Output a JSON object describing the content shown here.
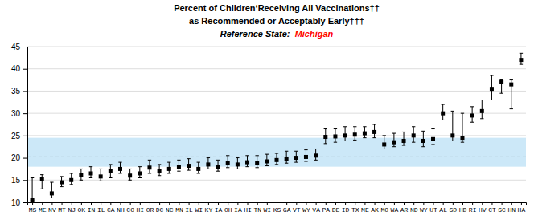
{
  "chart_data": {
    "type": "errorbar",
    "title": "Percent of Children‘Receiving All Vaccinations††",
    "subtitle": "as Recommended or Acceptably Early†††",
    "annotations": [
      {
        "text": "Reference State:  ",
        "color": "black"
      },
      {
        "text": "Michigan",
        "color": "red"
      }
    ],
    "categories": [
      "MS",
      "ME",
      "NV",
      "MT",
      "NJ",
      "OK",
      "IN",
      "IL",
      "CA",
      "NH",
      "CO",
      "HI",
      "OR",
      "DC",
      "NC",
      "MN",
      "IL",
      "WI",
      "KY",
      "IA",
      "OH",
      "IA",
      "HI",
      "TN",
      "WI",
      "KS",
      "GA",
      "VT",
      "WY",
      "VA",
      "PA",
      "DE",
      "ID",
      "TX",
      "ME",
      "AK",
      "MO",
      "WA",
      "AR",
      "ND",
      "WY",
      "UT",
      "AL",
      "SD",
      "HD",
      "RI",
      "HV",
      "CT",
      "SC",
      "HN",
      "HA"
    ],
    "values": [
      10.5,
      15.3,
      12.0,
      14.5,
      15.0,
      16.2,
      16.5,
      15.8,
      17.0,
      17.5,
      16.0,
      16.5,
      17.8,
      17.0,
      17.5,
      18.0,
      18.2,
      17.5,
      18.5,
      18.0,
      18.8,
      18.5,
      19.0,
      18.8,
      19.2,
      19.5,
      19.8,
      20.0,
      20.2,
      20.5,
      24.7,
      24.8,
      25.0,
      25.2,
      25.5,
      25.8,
      23.0,
      23.5,
      23.8,
      25.0,
      23.8,
      24.2,
      30.0,
      25.0,
      24.5,
      29.5,
      30.5,
      35.5,
      37.0,
      36.5,
      42.0
    ],
    "lower": [
      10.5,
      13.0,
      11.0,
      13.5,
      14.0,
      15.0,
      15.5,
      14.8,
      15.5,
      16.5,
      15.0,
      15.5,
      16.5,
      16.0,
      16.5,
      17.0,
      17.2,
      16.5,
      17.5,
      17.0,
      17.8,
      17.5,
      18.0,
      17.8,
      18.2,
      18.5,
      18.8,
      19.0,
      19.2,
      19.5,
      23.2,
      23.5,
      23.8,
      24.0,
      24.5,
      24.5,
      22.0,
      22.5,
      22.8,
      23.5,
      22.5,
      23.0,
      28.5,
      23.8,
      23.5,
      28.0,
      28.8,
      33.0,
      34.5,
      31.0,
      41.0
    ],
    "upper": [
      15.5,
      16.2,
      14.5,
      15.8,
      16.5,
      17.5,
      18.0,
      17.5,
      18.5,
      19.0,
      17.5,
      18.0,
      19.5,
      18.5,
      19.0,
      19.5,
      19.8,
      19.0,
      20.0,
      19.5,
      20.5,
      20.0,
      20.5,
      20.5,
      20.8,
      21.0,
      21.5,
      21.5,
      21.8,
      22.0,
      26.5,
      26.5,
      27.0,
      27.0,
      27.0,
      27.5,
      25.0,
      25.5,
      25.8,
      27.0,
      26.0,
      26.5,
      32.0,
      30.5,
      30.0,
      31.5,
      33.0,
      38.5,
      37.5,
      37.5,
      43.5
    ],
    "color": "black",
    "marker": "square",
    "reference_band": {
      "lower": 18.0,
      "upper": 24.5,
      "color": "#cce8f8"
    },
    "reference_line": {
      "value": 20.2,
      "color": "#555555",
      "line_style": "dashed"
    },
    "ylim": [
      10,
      45
    ],
    "yticks": [
      10,
      15,
      20,
      25,
      30,
      35,
      40,
      45
    ],
    "grid": true
  }
}
